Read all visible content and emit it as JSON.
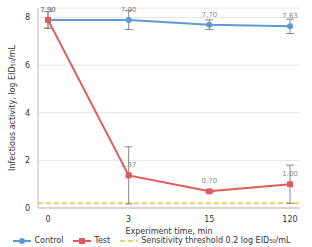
{
  "chart_data": {
    "type": "line",
    "x_label": "Experiment time, min",
    "y_label": "Infectious activity, log EID₅₀/mL",
    "categories": [
      "0",
      "3",
      "15",
      "120"
    ],
    "ylim": [
      0,
      8.4
    ],
    "yticks": [
      0,
      2,
      4,
      6,
      8
    ],
    "grid": true,
    "data_labels": true,
    "legend": "bottom",
    "series": [
      {
        "name": "Control",
        "color": "#5b9bd5",
        "marker": "circle",
        "line_style": "solid",
        "values": [
          7.9,
          7.9,
          7.7,
          7.63
        ],
        "value_labels": [
          "7.90",
          "7.90",
          "7.70",
          "7.63"
        ],
        "errors": [
          0.35,
          0.4,
          0.2,
          0.3
        ]
      },
      {
        "name": "Test",
        "color": "#e05a5a",
        "marker": "square",
        "line_style": "solid",
        "values": [
          7.9,
          1.37,
          0.7,
          1.0
        ],
        "value_labels": [
          "7.90",
          "1.37",
          "0.70",
          "1.00"
        ],
        "errors": [
          0.35,
          1.2,
          0.05,
          0.8
        ]
      }
    ],
    "reference_lines": [
      {
        "name": "Sensitivity threshold 0.2 log EID₅₀/mL",
        "value": 0.2,
        "color": "#e6c84a",
        "line_style": "dashed"
      }
    ]
  }
}
